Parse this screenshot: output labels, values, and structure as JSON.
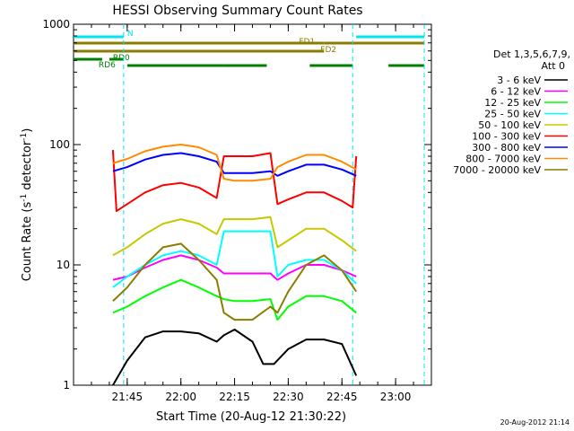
{
  "chart_data": {
    "type": "line",
    "title": "HESSI Observing Summary Count Rates",
    "xlabel": "Start Time (20-Aug-12 21:30:22)",
    "ylabel": "Count Rate (s",
    "ylabel_sup1": "-1",
    "ylabel_mid": " detector",
    "ylabel_sup2": "-1",
    "ylabel_end": ")",
    "yscale": "log",
    "ylim": [
      1,
      1000
    ],
    "xlim": [
      "21:30",
      "23:10"
    ],
    "x_ticks": [
      "21:45",
      "22:00",
      "22:15",
      "22:30",
      "22:45",
      "23:00"
    ],
    "y_ticks": [
      "1",
      "10",
      "100",
      "1000"
    ],
    "timestamp": "20-Aug-2012 21:14",
    "legend": {
      "header1": "Det 1,3,5,6,7,9,",
      "header2": "Att 0",
      "placement": "right"
    },
    "flag_bars": [
      {
        "label": "N",
        "color": "#00e5ee",
        "segments": [
          [
            "21:30",
            "21:44"
          ],
          [
            "22:49",
            "23:08"
          ]
        ]
      },
      {
        "label": "FD1",
        "color": "#8b7d00",
        "segments": [
          [
            "21:30",
            "22:40"
          ],
          [
            "22:40",
            "23:08"
          ]
        ]
      },
      {
        "label": "FD2",
        "color": "#8b7d00",
        "segments": [
          [
            "21:30",
            "22:40"
          ]
        ]
      },
      {
        "label": "RD0",
        "color": "#008000",
        "segments": [
          [
            "21:30",
            "21:38"
          ],
          [
            "21:40",
            "21:44"
          ]
        ]
      },
      {
        "label": "RD6",
        "color": "#008000",
        "segments": [
          [
            "21:45",
            "22:12"
          ],
          [
            "22:12",
            "22:24"
          ],
          [
            "22:36",
            "22:48"
          ],
          [
            "22:58",
            "23:08"
          ]
        ]
      }
    ],
    "daylight_boundaries": [
      "21:44",
      "22:48",
      "23:08"
    ],
    "series": [
      {
        "name": "3 - 6 keV",
        "color": "#000000",
        "values": [
          [
            "21:41",
            1
          ],
          [
            "21:45",
            1.6
          ],
          [
            "21:50",
            2.5
          ],
          [
            "21:55",
            2.8
          ],
          [
            "22:00",
            2.8
          ],
          [
            "22:05",
            2.7
          ],
          [
            "22:10",
            2.3
          ],
          [
            "22:12",
            2.6
          ],
          [
            "22:15",
            2.9
          ],
          [
            "22:20",
            2.3
          ],
          [
            "22:23",
            1.5
          ],
          [
            "22:26",
            1.5
          ],
          [
            "22:30",
            2.0
          ],
          [
            "22:35",
            2.4
          ],
          [
            "22:40",
            2.4
          ],
          [
            "22:45",
            2.2
          ],
          [
            "22:49",
            1.2
          ]
        ]
      },
      {
        "name": "6 - 12 keV",
        "color": "#ff00ff",
        "values": [
          [
            "21:41",
            7.5
          ],
          [
            "21:45",
            8
          ],
          [
            "21:50",
            9.5
          ],
          [
            "21:55",
            11
          ],
          [
            "22:00",
            12
          ],
          [
            "22:05",
            11
          ],
          [
            "22:10",
            9.5
          ],
          [
            "22:12",
            8.5
          ],
          [
            "22:15",
            8.5
          ],
          [
            "22:20",
            8.5
          ],
          [
            "22:25",
            8.5
          ],
          [
            "22:27",
            7.5
          ],
          [
            "22:30",
            8.5
          ],
          [
            "22:35",
            10
          ],
          [
            "22:40",
            10
          ],
          [
            "22:45",
            9
          ],
          [
            "22:49",
            8
          ]
        ]
      },
      {
        "name": "12 - 25 keV",
        "color": "#00ff00",
        "values": [
          [
            "21:41",
            4
          ],
          [
            "21:45",
            4.5
          ],
          [
            "21:50",
            5.5
          ],
          [
            "21:55",
            6.5
          ],
          [
            "22:00",
            7.5
          ],
          [
            "22:05",
            6.5
          ],
          [
            "22:10",
            5.5
          ],
          [
            "22:12",
            5.2
          ],
          [
            "22:15",
            5.0
          ],
          [
            "22:20",
            5.0
          ],
          [
            "22:25",
            5.2
          ],
          [
            "22:27",
            3.5
          ],
          [
            "22:30",
            4.5
          ],
          [
            "22:35",
            5.5
          ],
          [
            "22:40",
            5.5
          ],
          [
            "22:45",
            5.0
          ],
          [
            "22:49",
            4
          ]
        ]
      },
      {
        "name": "25 - 50 keV",
        "color": "#00ffff",
        "values": [
          [
            "21:41",
            6.5
          ],
          [
            "21:45",
            8
          ],
          [
            "21:50",
            10
          ],
          [
            "21:55",
            12
          ],
          [
            "22:00",
            13
          ],
          [
            "22:05",
            12
          ],
          [
            "22:10",
            10
          ],
          [
            "22:12",
            19
          ],
          [
            "22:15",
            19
          ],
          [
            "22:20",
            19
          ],
          [
            "22:25",
            19
          ],
          [
            "22:27",
            8
          ],
          [
            "22:30",
            10
          ],
          [
            "22:35",
            11
          ],
          [
            "22:40",
            11
          ],
          [
            "22:45",
            9
          ],
          [
            "22:49",
            7
          ]
        ]
      },
      {
        "name": "50 - 100 keV",
        "color": "#c8c800",
        "values": [
          [
            "21:41",
            12
          ],
          [
            "21:45",
            14
          ],
          [
            "21:50",
            18
          ],
          [
            "21:55",
            22
          ],
          [
            "22:00",
            24
          ],
          [
            "22:05",
            22
          ],
          [
            "22:10",
            18
          ],
          [
            "22:12",
            24
          ],
          [
            "22:15",
            24
          ],
          [
            "22:20",
            24
          ],
          [
            "22:25",
            25
          ],
          [
            "22:27",
            14
          ],
          [
            "22:30",
            16
          ],
          [
            "22:35",
            20
          ],
          [
            "22:40",
            20
          ],
          [
            "22:45",
            16
          ],
          [
            "22:49",
            13
          ]
        ]
      },
      {
        "name": "100 - 300 keV",
        "color": "#ff0000",
        "values": [
          [
            "21:41",
            90
          ],
          [
            "21:42",
            28
          ],
          [
            "21:45",
            32
          ],
          [
            "21:50",
            40
          ],
          [
            "21:55",
            46
          ],
          [
            "22:00",
            48
          ],
          [
            "22:05",
            44
          ],
          [
            "22:10",
            36
          ],
          [
            "22:12",
            80
          ],
          [
            "22:15",
            80
          ],
          [
            "22:20",
            80
          ],
          [
            "22:25",
            85
          ],
          [
            "22:27",
            32
          ],
          [
            "22:30",
            35
          ],
          [
            "22:35",
            40
          ],
          [
            "22:40",
            40
          ],
          [
            "22:45",
            34
          ],
          [
            "22:48",
            30
          ],
          [
            "22:49",
            80
          ]
        ]
      },
      {
        "name": "300 - 800 keV",
        "color": "#0000ff",
        "values": [
          [
            "21:41",
            60
          ],
          [
            "21:45",
            65
          ],
          [
            "21:50",
            75
          ],
          [
            "21:55",
            82
          ],
          [
            "22:00",
            85
          ],
          [
            "22:05",
            80
          ],
          [
            "22:10",
            72
          ],
          [
            "22:12",
            58
          ],
          [
            "22:15",
            58
          ],
          [
            "22:20",
            58
          ],
          [
            "22:25",
            60
          ],
          [
            "22:27",
            55
          ],
          [
            "22:30",
            60
          ],
          [
            "22:35",
            68
          ],
          [
            "22:40",
            68
          ],
          [
            "22:45",
            62
          ],
          [
            "22:49",
            55
          ]
        ]
      },
      {
        "name": "800 - 7000 keV",
        "color": "#ff8c00",
        "values": [
          [
            "21:41",
            70
          ],
          [
            "21:45",
            76
          ],
          [
            "21:50",
            88
          ],
          [
            "21:55",
            96
          ],
          [
            "22:00",
            100
          ],
          [
            "22:05",
            95
          ],
          [
            "22:10",
            82
          ],
          [
            "22:12",
            52
          ],
          [
            "22:15",
            50
          ],
          [
            "22:20",
            50
          ],
          [
            "22:25",
            52
          ],
          [
            "22:27",
            65
          ],
          [
            "22:30",
            72
          ],
          [
            "22:35",
            82
          ],
          [
            "22:40",
            82
          ],
          [
            "22:45",
            72
          ],
          [
            "22:49",
            62
          ]
        ]
      },
      {
        "name": "7000 - 20000 keV",
        "color": "#8b7d00",
        "values": [
          [
            "21:41",
            5
          ],
          [
            "21:45",
            6.5
          ],
          [
            "21:50",
            10
          ],
          [
            "21:55",
            14
          ],
          [
            "22:00",
            15
          ],
          [
            "22:05",
            11
          ],
          [
            "22:10",
            7.5
          ],
          [
            "22:12",
            4
          ],
          [
            "22:15",
            3.5
          ],
          [
            "22:20",
            3.5
          ],
          [
            "22:25",
            4.5
          ],
          [
            "22:27",
            4
          ],
          [
            "22:30",
            6
          ],
          [
            "22:35",
            10
          ],
          [
            "22:40",
            12
          ],
          [
            "22:45",
            9
          ],
          [
            "22:49",
            6
          ]
        ]
      }
    ]
  }
}
